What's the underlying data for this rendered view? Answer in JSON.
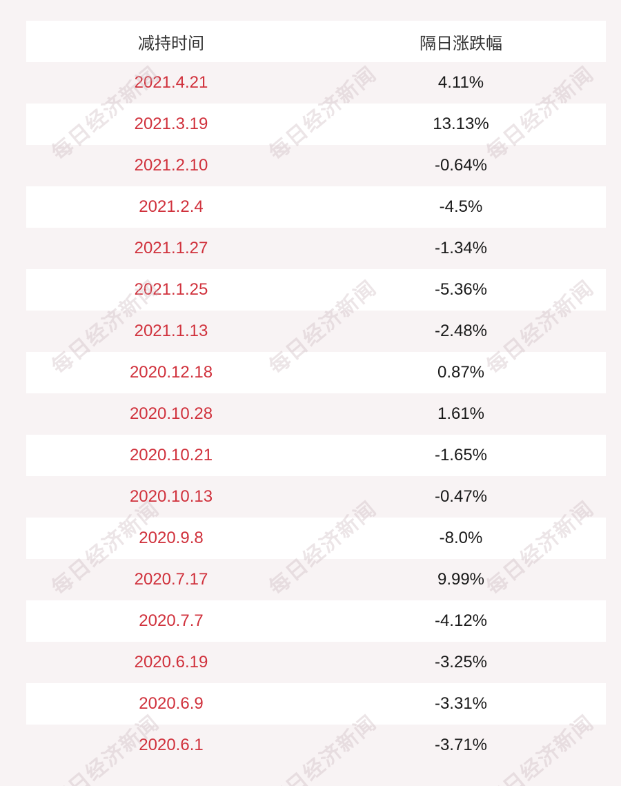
{
  "header": {
    "col1": "减持时间",
    "col2": "隔日涨跌幅"
  },
  "rows": [
    {
      "date": "2021.4.21",
      "change": "4.11%"
    },
    {
      "date": "2021.3.19",
      "change": "13.13%"
    },
    {
      "date": "2021.2.10",
      "change": "-0.64%"
    },
    {
      "date": "2021.2.4",
      "change": "-4.5%"
    },
    {
      "date": "2021.1.27",
      "change": "-1.34%"
    },
    {
      "date": "2021.1.25",
      "change": "-5.36%"
    },
    {
      "date": "2021.1.13",
      "change": "-2.48%"
    },
    {
      "date": "2020.12.18",
      "change": "0.87%"
    },
    {
      "date": "2020.10.28",
      "change": "1.61%"
    },
    {
      "date": "2020.10.21",
      "change": "-1.65%"
    },
    {
      "date": "2020.10.13",
      "change": "-0.47%"
    },
    {
      "date": "2020.9.8",
      "change": "-8.0%"
    },
    {
      "date": "2020.7.17",
      "change": "9.99%"
    },
    {
      "date": "2020.7.7",
      "change": "-4.12%"
    },
    {
      "date": "2020.6.19",
      "change": "-3.25%"
    },
    {
      "date": "2020.6.9",
      "change": "-3.31%"
    },
    {
      "date": "2020.6.1",
      "change": "-3.71%"
    }
  ],
  "watermark": "每日经济新闻",
  "colors": {
    "date": "#d0313c",
    "value": "#1a1a1a",
    "header": "#333333",
    "stripe": "#f8f3f4"
  }
}
